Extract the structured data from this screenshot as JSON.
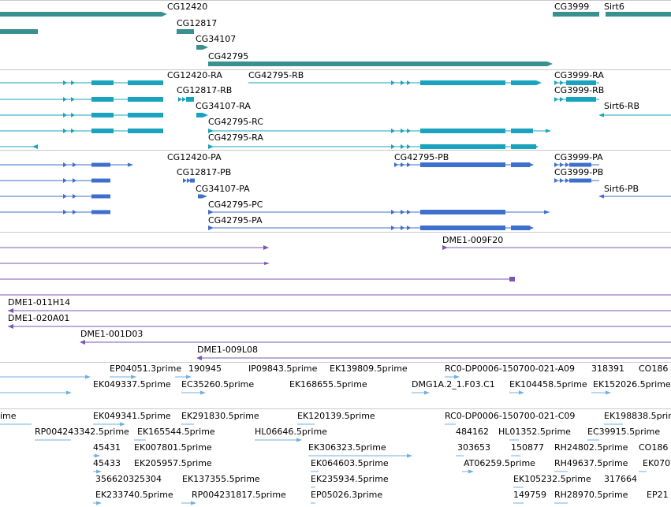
{
  "colors": {
    "gene": "#3a8f8f",
    "transcript_mrna": "#1aa3bf",
    "transcript_pep": "#3d6fcc",
    "bac": "#7b57b1",
    "est": "#6fb0e0",
    "separator": "#c9c9c9"
  },
  "tracks": {
    "genes": [
      "CG12420",
      "CG12817",
      "CG34107",
      "CG42795",
      "CG3999",
      "Sirt6"
    ],
    "mrna_transcripts": [
      "CG12420-RA",
      "CG42795-RB",
      "CG3999-RA",
      "CG12817-RB",
      "CG3999-RB",
      "CG34107-RA",
      "Sirt6-RB",
      "CG42795-RC",
      "CG42795-RA"
    ],
    "peptide_transcripts": [
      "CG12420-PA",
      "CG42795-PB",
      "CG3999-PA",
      "CG12817-PB",
      "CG3999-PB",
      "CG34107-PA",
      "Sirt6-PB",
      "CG42795-PC",
      "CG42795-PA"
    ],
    "bac_clones": [
      "DME1-009F20",
      "DME1-011H14",
      "DME1-020A01",
      "DME1-001D03",
      "DME1-009L08"
    ],
    "est_track_1": [
      "EP04051.3prime",
      "190945",
      "IP09843.5prime",
      "EK139809.5prime",
      "RC0-DP0006-150700-021-A09",
      "318391",
      "CO186",
      "EK049337.5prime",
      "EC35260.5prime",
      "EK168655.5prime",
      "DMG1A.2_1.F03.C1",
      "EK104458.5prime",
      "EK152026.5prime"
    ],
    "est_track_2": [
      "ime",
      "EK049341.5prime",
      "EK291830.5prime",
      "EK120139.5prime",
      "RC0-DP0006-150700-021-C09",
      "EK198838.5prime",
      "RP004243342.5prime",
      "EK165544.5prime",
      "HL06646.5prime",
      "484162",
      "HL01352.5prime",
      "EC39915.5prime",
      "45431",
      "EK007801.5prime",
      "EK306323.5prime",
      "303653",
      "150877",
      "RH24802.5prime",
      "CO186",
      "45433",
      "EK205957.5prime",
      "EK064603.5prime",
      "AT06259.5prime",
      "RH49637.5prime",
      "EK070",
      "356620325304",
      "EK137355.5prime",
      "EK235934.5prime",
      "EK105232.5prime",
      "317664",
      "EK233740.5prime",
      "RP004231817.5prime",
      "EP05026.3prime",
      "149759",
      "RH28970.5prime",
      "EP21"
    ]
  }
}
